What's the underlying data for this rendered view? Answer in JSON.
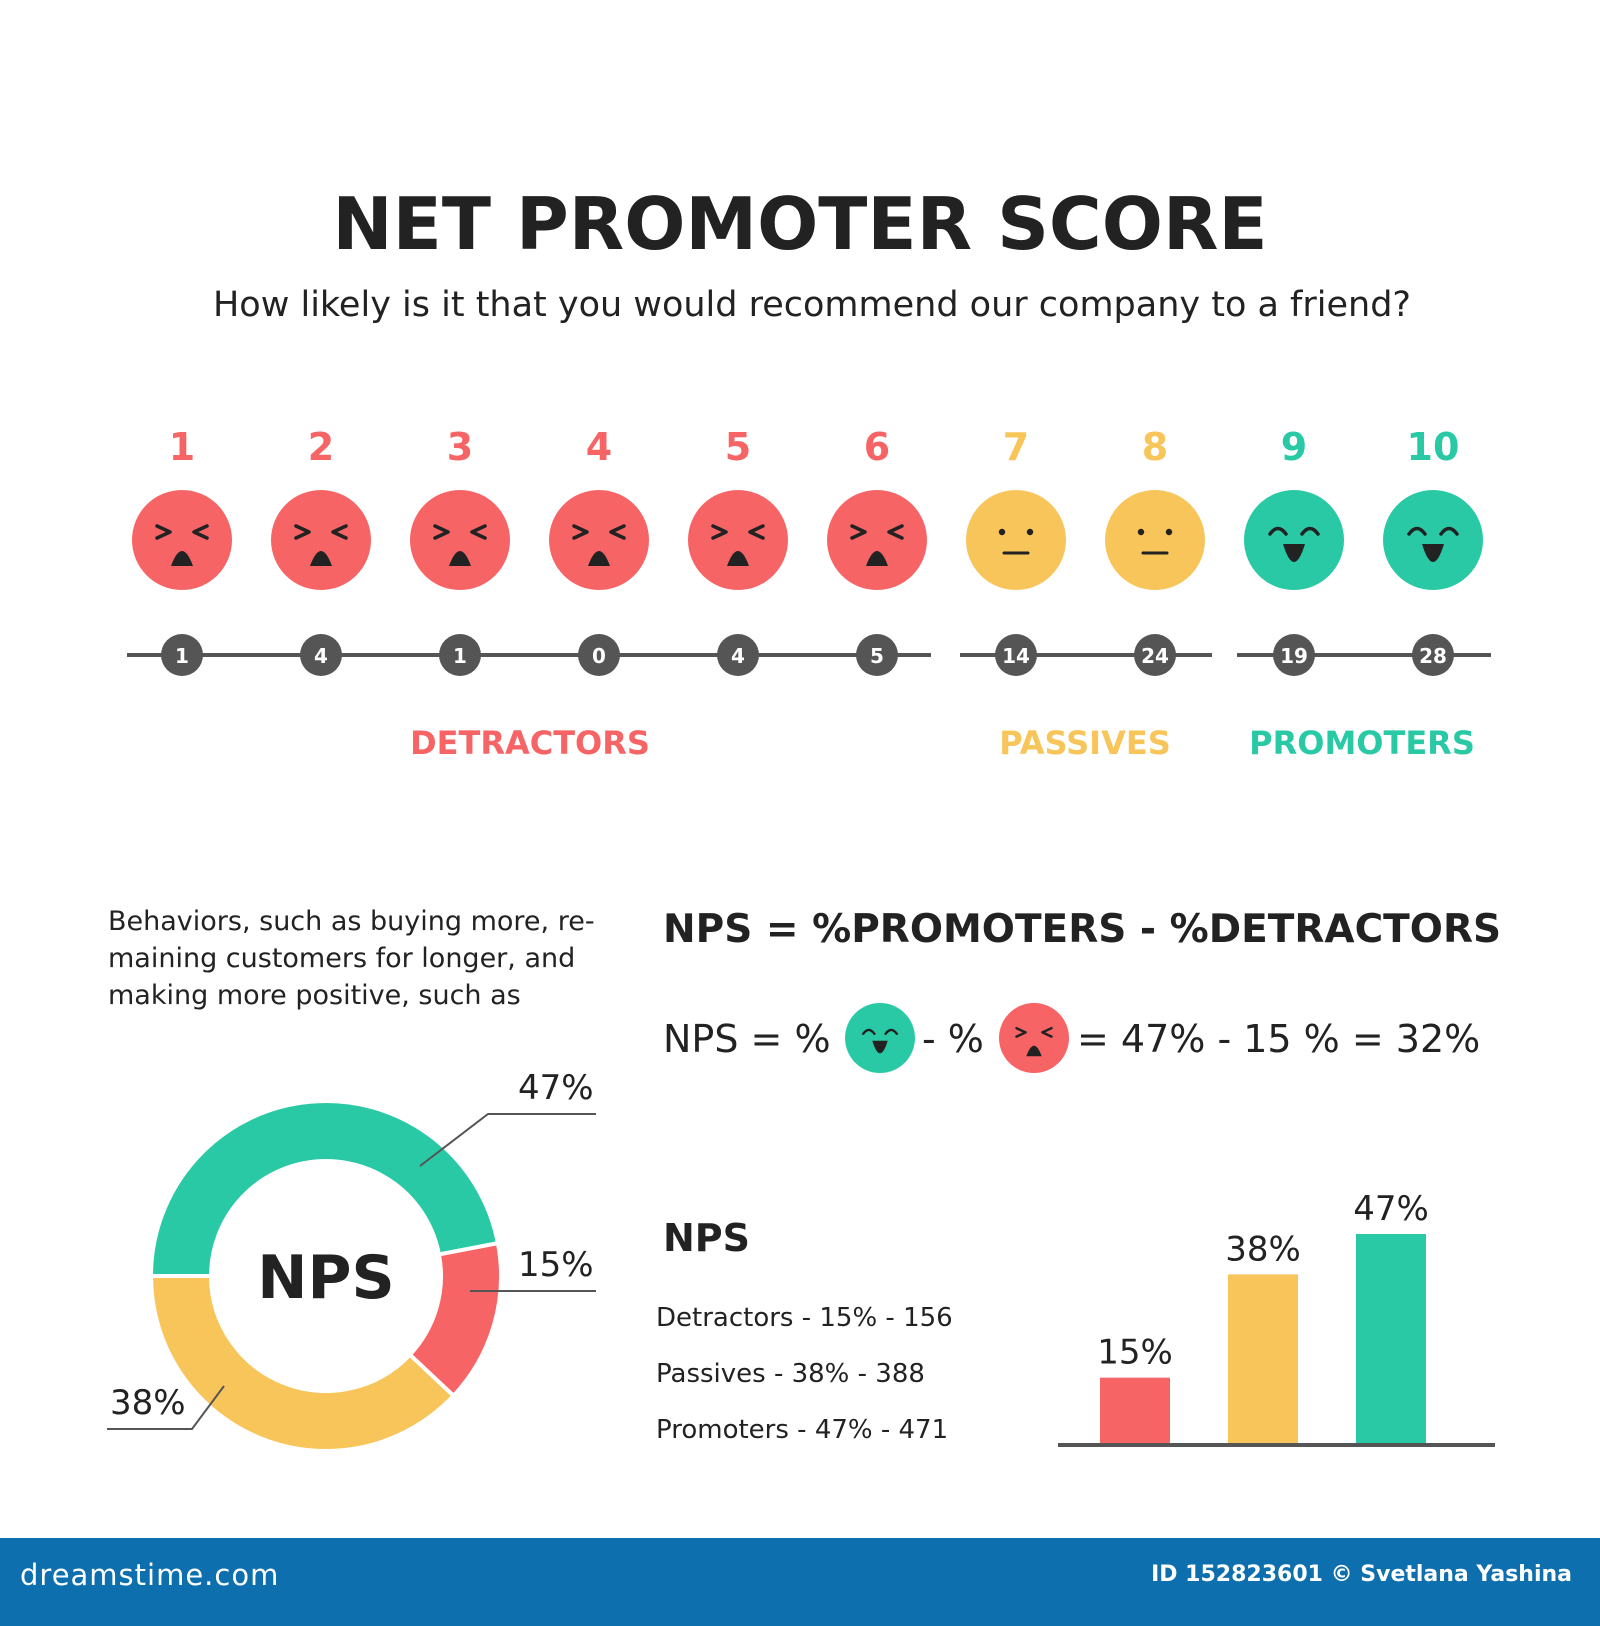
{
  "header": {
    "title": "NET PROMOTER SCORE",
    "subtitle": "How likely is it that you would recommend our company to a friend?"
  },
  "scale": [
    {
      "score": "1",
      "count": "1",
      "group": "detractor"
    },
    {
      "score": "2",
      "count": "4",
      "group": "detractor"
    },
    {
      "score": "3",
      "count": "1",
      "group": "detractor"
    },
    {
      "score": "4",
      "count": "0",
      "group": "detractor"
    },
    {
      "score": "5",
      "count": "4",
      "group": "detractor"
    },
    {
      "score": "6",
      "count": "5",
      "group": "detractor"
    },
    {
      "score": "7",
      "count": "14",
      "group": "passive"
    },
    {
      "score": "8",
      "count": "24",
      "group": "passive"
    },
    {
      "score": "9",
      "count": "19",
      "group": "promoter"
    },
    {
      "score": "10",
      "count": "28",
      "group": "promoter"
    }
  ],
  "groups": {
    "detractors": "DETRACTORS",
    "passives": "PASSIVES",
    "promoters": "PROMOTERS"
  },
  "colors": {
    "detractor": "#f66466",
    "passive": "#f8c55b",
    "promoter": "#2ac9a6",
    "dark": "#555555",
    "text": "#222222",
    "footer": "#0d6fae"
  },
  "behaviors_text": [
    "Behaviors, such as buying more, re-",
    "maining customers for longer, and",
    "making more positive, such as"
  ],
  "formula": {
    "heading": "NPS = %PROMOTERS - %DETRACTORS",
    "prefix": "NPS = %",
    "minus": "- %",
    "result": "= 47% - 15 % = 32%"
  },
  "summary": {
    "heading": "NPS",
    "lines": [
      "Detractors - 15% - 156",
      "Passives - 38% - 388",
      "Promoters - 47% - 471"
    ]
  },
  "chart_data": [
    {
      "type": "pie",
      "center_label": "NPS",
      "categories": [
        "Promoters",
        "Detractors",
        "Passives"
      ],
      "values": [
        47,
        15,
        38
      ],
      "labels": [
        "47%",
        "15%",
        "38%"
      ]
    },
    {
      "type": "bar",
      "categories": [
        "Detractors",
        "Passives",
        "Promoters"
      ],
      "values": [
        15,
        38,
        47
      ],
      "labels": [
        "15%",
        "38%",
        "47%"
      ],
      "ylim": [
        0,
        47
      ]
    }
  ],
  "footer": {
    "site": "dreamstime.com",
    "credit": "ID 152823601 © Svetlana Yashina"
  }
}
